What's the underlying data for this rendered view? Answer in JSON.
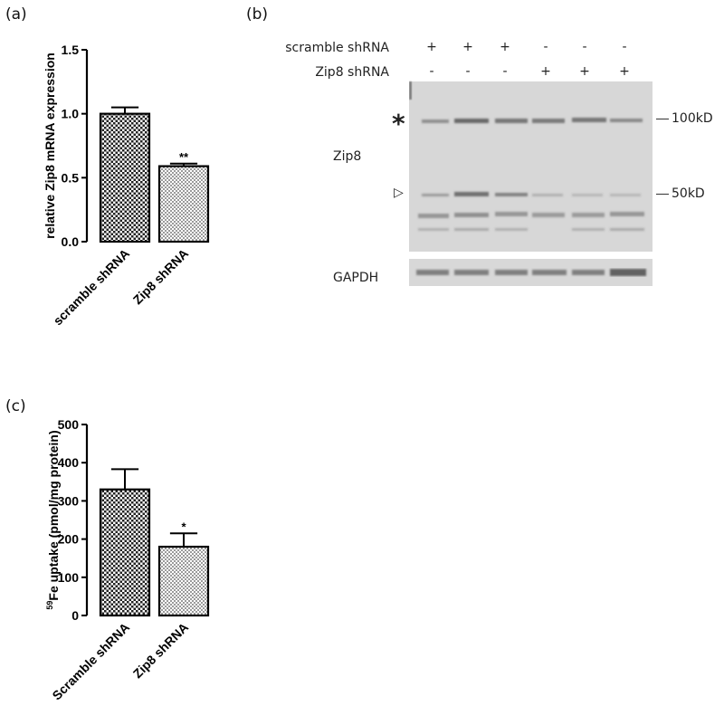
{
  "panels": {
    "a": "(a)",
    "b": "(b)",
    "c": "(c)"
  },
  "chart_data": [
    {
      "type": "bar",
      "panel": "(a)",
      "categories": [
        "scramble shRNA",
        "Zip8 shRNA"
      ],
      "values": [
        1.0,
        0.59
      ],
      "errors": [
        0.05,
        0.02
      ],
      "significance": [
        "",
        "**"
      ],
      "title": "",
      "xlabel": "",
      "ylabel": "relative Zip8 mRNA expression",
      "ylim": [
        0,
        1.5
      ],
      "yticks": [
        "0.0",
        "0.5",
        "1.0",
        "1.5"
      ],
      "ytick_values": [
        0,
        0.5,
        1.0,
        1.5
      ],
      "fills": [
        "dark-checker",
        "light-checker"
      ]
    },
    {
      "type": "bar",
      "panel": "(c)",
      "categories": [
        "Scramble shRNA",
        "Zip8 shRNA"
      ],
      "values": [
        330,
        180
      ],
      "errors": [
        53,
        35
      ],
      "significance": [
        "",
        "*"
      ],
      "title": "",
      "xlabel": "",
      "ylabel_sup": "59",
      "ylabel": "Fe uptake (pmol/mg protein)",
      "ylim": [
        0,
        500
      ],
      "yticks": [
        "0",
        "100",
        "200",
        "300",
        "400",
        "500"
      ],
      "ytick_values": [
        0,
        100,
        200,
        300,
        400,
        500
      ],
      "fills": [
        "dark-checker",
        "light-checker"
      ]
    }
  ],
  "blot": {
    "rows": [
      {
        "label": "scramble shRNA",
        "values": [
          "+",
          "+",
          "+",
          "-",
          "-",
          "-"
        ]
      },
      {
        "label": "Zip8 shRNA",
        "values": [
          "-",
          "-",
          "-",
          "+",
          "+",
          "+"
        ]
      }
    ],
    "zip8_label": "Zip8",
    "gapdh_label": "GAPDH",
    "marker_100": "100kD",
    "marker_50": "50kD",
    "asterisk": "*",
    "arrowhead": "▷"
  }
}
